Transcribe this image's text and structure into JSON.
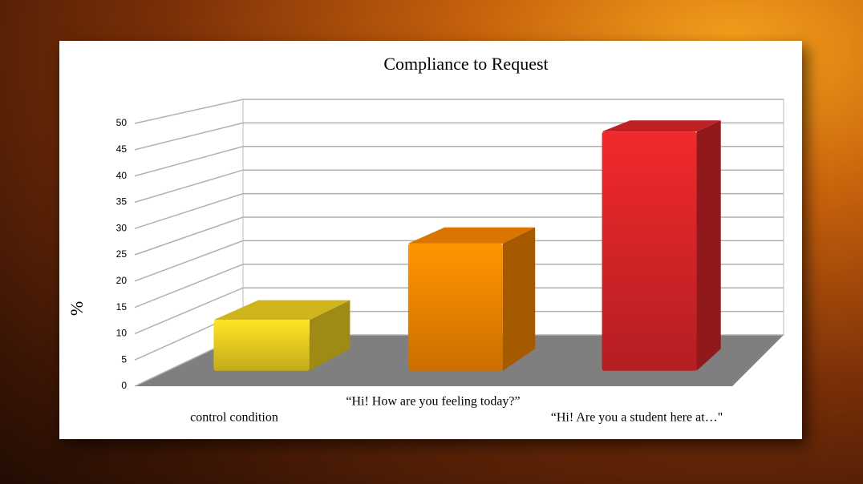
{
  "chart_data": {
    "type": "bar3d",
    "title": "Compliance to Request",
    "y_label": "%",
    "categories": [
      "control condition",
      "“Hi! How are you feeling today?”",
      "“Hi! Are you a student here at…\""
    ],
    "values": [
      10,
      25,
      47
    ],
    "colors": [
      "#f5d421",
      "#ff8a00",
      "#e0262a"
    ],
    "ylim": [
      0,
      50
    ],
    "yticks": [
      0,
      5,
      10,
      15,
      20,
      25,
      30,
      35,
      40,
      45,
      50
    ],
    "grid": true
  }
}
